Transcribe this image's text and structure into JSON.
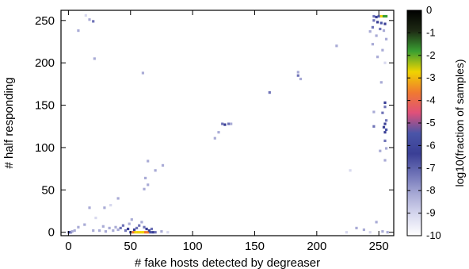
{
  "chart_data": {
    "type": "heatmap",
    "xlabel": "# fake hosts detected by degreaser",
    "ylabel": "# half responding",
    "xlim": [
      -6,
      262
    ],
    "ylim": [
      -4,
      262
    ],
    "xticks": [
      0,
      50,
      100,
      150,
      200,
      250
    ],
    "yticks": [
      0,
      50,
      100,
      150,
      200,
      250
    ],
    "colorbar": {
      "label": "log10(fraction of samples)",
      "range": [
        -10,
        0
      ],
      "ticks": [
        0,
        -1,
        -2,
        -3,
        -4,
        -5,
        -6,
        -7,
        -8,
        -9,
        -10
      ],
      "tick_labels": [
        "0",
        "-1",
        "-2",
        "-3",
        "-4",
        "-5",
        "-6",
        "-7",
        "-8",
        "-9",
        "-10"
      ],
      "colors": [
        "#000000",
        "#1e2a14",
        "#3aa032",
        "#f0d400",
        "#f07a30",
        "#e0507a",
        "#4a55a8",
        "#3a3f95",
        "#6f73b7",
        "#a9abd6",
        "#d8d9ef",
        "#ffffff"
      ]
    },
    "points": [
      [
        0,
        0,
        -8
      ],
      [
        1,
        0,
        -6
      ],
      [
        2,
        0,
        -7
      ],
      [
        3,
        1,
        -8
      ],
      [
        5,
        2,
        -8
      ],
      [
        8,
        6,
        -8
      ],
      [
        13,
        9,
        -8
      ],
      [
        17,
        29,
        -8
      ],
      [
        22,
        17,
        -9
      ],
      [
        29,
        29,
        -8
      ],
      [
        34,
        32,
        -9
      ],
      [
        40,
        40,
        -8
      ],
      [
        14,
        256,
        -9
      ],
      [
        17,
        251,
        -8
      ],
      [
        20,
        249,
        -7
      ],
      [
        8,
        238,
        -8
      ],
      [
        21,
        205,
        -8
      ],
      [
        20,
        2,
        -8
      ],
      [
        25,
        2,
        -8
      ],
      [
        28,
        7,
        -8
      ],
      [
        30,
        1,
        -8
      ],
      [
        33,
        5,
        -8
      ],
      [
        36,
        2,
        -8
      ],
      [
        38,
        6,
        -8
      ],
      [
        40,
        3,
        -8
      ],
      [
        42,
        5,
        -7
      ],
      [
        44,
        8,
        -7
      ],
      [
        46,
        2,
        -7
      ],
      [
        48,
        4,
        -6
      ],
      [
        49,
        10,
        -8
      ],
      [
        50,
        0,
        -5
      ],
      [
        52,
        0,
        -4
      ],
      [
        54,
        0,
        -3
      ],
      [
        56,
        0,
        -3
      ],
      [
        58,
        0,
        -3
      ],
      [
        60,
        0,
        -3
      ],
      [
        62,
        0,
        -4
      ],
      [
        64,
        0,
        -4
      ],
      [
        66,
        0,
        -5
      ],
      [
        68,
        0,
        -6
      ],
      [
        70,
        0,
        -7
      ],
      [
        53,
        3,
        -6
      ],
      [
        55,
        5,
        -7
      ],
      [
        57,
        8,
        -7
      ],
      [
        59,
        12,
        -8
      ],
      [
        61,
        6,
        -7
      ],
      [
        63,
        4,
        -6
      ],
      [
        65,
        2,
        -6
      ],
      [
        67,
        4,
        -7
      ],
      [
        51,
        15,
        -8
      ],
      [
        75,
        1,
        -8
      ],
      [
        80,
        0,
        -9
      ],
      [
        60,
        188,
        -8
      ],
      [
        64,
        84,
        -8
      ],
      [
        62,
        64,
        -8
      ],
      [
        64,
        56,
        -8
      ],
      [
        61,
        51,
        -8
      ],
      [
        70,
        73,
        -8
      ],
      [
        76,
        79,
        -8
      ],
      [
        118,
        111,
        -8
      ],
      [
        121,
        118,
        -8
      ],
      [
        124,
        128,
        -7
      ],
      [
        126,
        127,
        -6
      ],
      [
        129,
        128,
        -7
      ],
      [
        131,
        128,
        -8
      ],
      [
        162,
        165,
        -7
      ],
      [
        185,
        189,
        -8
      ],
      [
        185,
        185,
        -7
      ],
      [
        187,
        181,
        -8
      ],
      [
        216,
        220,
        -8
      ],
      [
        227,
        73,
        -9
      ],
      [
        224,
        0,
        -9
      ],
      [
        232,
        5,
        -8
      ],
      [
        238,
        3,
        -8
      ],
      [
        243,
        0,
        -9
      ],
      [
        246,
        255,
        -7
      ],
      [
        248,
        254,
        -6
      ],
      [
        250,
        255,
        -5
      ],
      [
        252,
        255,
        -3
      ],
      [
        254,
        255,
        -2
      ],
      [
        256,
        255,
        -2
      ],
      [
        246,
        250,
        -7
      ],
      [
        249,
        248,
        -6
      ],
      [
        252,
        247,
        -5
      ],
      [
        255,
        246,
        -6
      ],
      [
        245,
        242,
        -7
      ],
      [
        251,
        240,
        -7
      ],
      [
        254,
        238,
        -8
      ],
      [
        243,
        237,
        -8
      ],
      [
        248,
        232,
        -8
      ],
      [
        256,
        228,
        -8
      ],
      [
        245,
        222,
        -8
      ],
      [
        253,
        215,
        -8
      ],
      [
        249,
        207,
        -8
      ],
      [
        255,
        200,
        -9
      ],
      [
        252,
        177,
        -8
      ],
      [
        255,
        153,
        -6
      ],
      [
        255,
        148,
        -7
      ],
      [
        253,
        141,
        -7
      ],
      [
        246,
        142,
        -8
      ],
      [
        256,
        132,
        -7
      ],
      [
        255,
        128,
        -6
      ],
      [
        254,
        124,
        -6
      ],
      [
        256,
        121,
        -5
      ],
      [
        255,
        118,
        -6
      ],
      [
        246,
        125,
        -7
      ],
      [
        255,
        108,
        -7
      ],
      [
        256,
        99,
        -8
      ],
      [
        251,
        96,
        -8
      ],
      [
        255,
        85,
        -8
      ],
      [
        248,
        12,
        -8
      ],
      [
        253,
        1,
        -8
      ],
      [
        257,
        0,
        -8
      ]
    ]
  }
}
